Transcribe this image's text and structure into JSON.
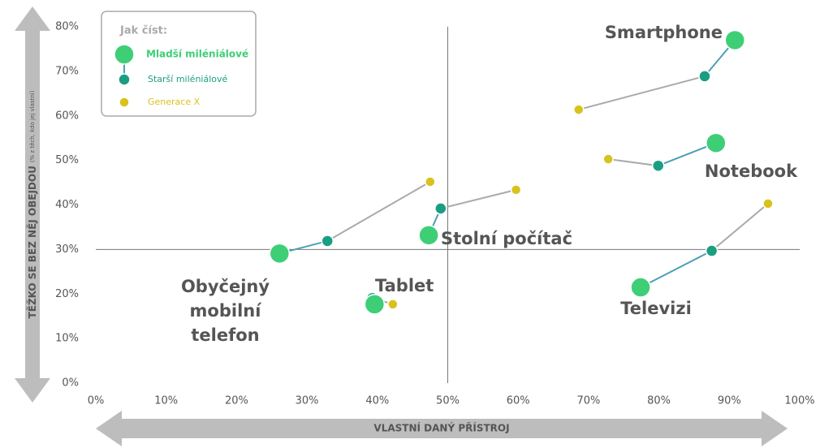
{
  "chart_data": {
    "type": "scatter",
    "y_label": "TĚŽKO SE BEZ NĚJ OBEJDOU",
    "y_label_note": "(% z těch, kdo jej vlastní)",
    "x_label": "VLASTNÍ DANÝ PŘÍSTROJ",
    "legend_title": "Jak číst:",
    "categories": [
      "Smartphone",
      "Notebook",
      "Stolní počítač",
      "Obyčejný mobilní telefon",
      "Tablet",
      "Televizi"
    ],
    "series": [
      {
        "name": "Mladší miléniálové",
        "color": "#3ecf76",
        "x": [
          90.8,
          88.1,
          47.3,
          26.1,
          39.6,
          77.4
        ],
        "values": [
          77.0,
          53.9,
          33.2,
          29.1,
          17.7,
          21.5
        ]
      },
      {
        "name": "Starší miléniálové",
        "color": "#1a9e82",
        "x": [
          86.5,
          79.9,
          49.0,
          32.9,
          39.3,
          87.5
        ],
        "values": [
          68.9,
          48.8,
          39.2,
          31.9,
          19.1,
          29.7
        ]
      },
      {
        "name": "Generace X",
        "color": "#d8c21c",
        "x": [
          68.6,
          72.8,
          59.7,
          47.5,
          42.2,
          95.5
        ],
        "values": [
          61.4,
          50.3,
          43.4,
          45.2,
          17.7,
          40.3
        ]
      }
    ],
    "xlim": [
      0,
      100
    ],
    "xticks": [
      {
        "value": 0,
        "label": "0%"
      },
      {
        "value": 10,
        "label": "10%"
      },
      {
        "value": 20,
        "label": "20%"
      },
      {
        "value": 30,
        "label": "30%"
      },
      {
        "value": 40,
        "label": "40%"
      },
      {
        "value": 50,
        "label": "50%"
      },
      {
        "value": 60,
        "label": "60%"
      },
      {
        "value": 70,
        "label": "70%"
      },
      {
        "value": 80,
        "label": "80%"
      },
      {
        "value": 90,
        "label": "90%"
      },
      {
        "value": 100,
        "label": "100%"
      }
    ],
    "ylim": [
      0,
      80
    ],
    "yticks": [
      {
        "value": 0,
        "label": "0%"
      },
      {
        "value": 10,
        "label": "10%"
      },
      {
        "value": 20,
        "label": "20%"
      },
      {
        "value": 30,
        "label": "30%"
      },
      {
        "value": 40,
        "label": "40%"
      },
      {
        "value": 50,
        "label": "50%"
      },
      {
        "value": 60,
        "label": "60%"
      },
      {
        "value": 70,
        "label": "70%"
      },
      {
        "value": 80,
        "label": "80%"
      }
    ],
    "reference_lines": {
      "x": 50,
      "y": 30
    }
  }
}
